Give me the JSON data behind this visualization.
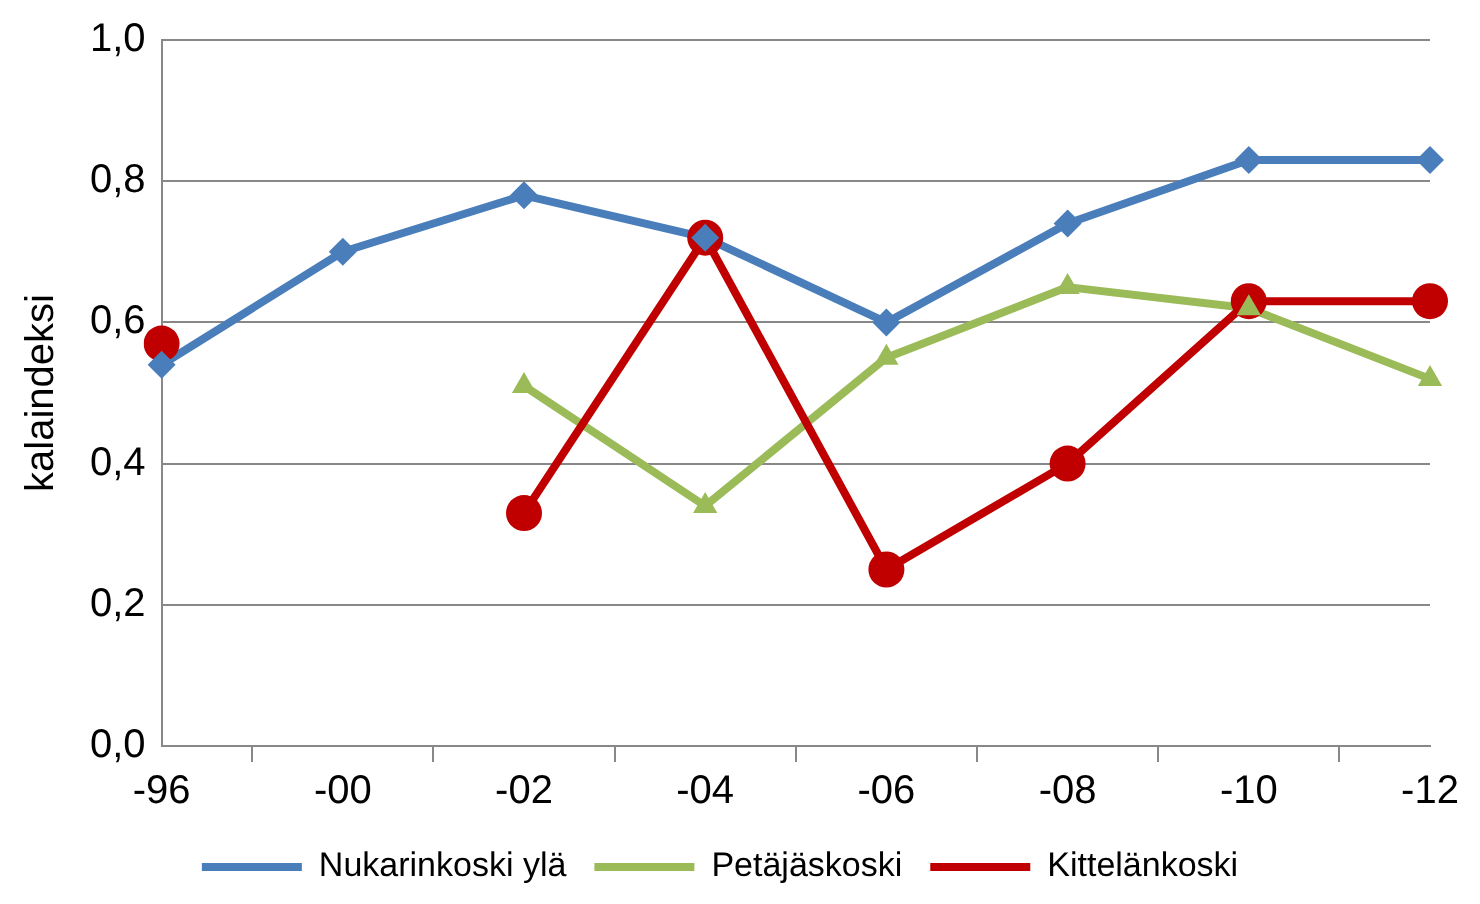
{
  "chart_data": {
    "type": "line",
    "ylabel": "kalaindeksi",
    "categories": [
      "-96",
      "-00",
      "-02",
      "-04",
      "-06",
      "-08",
      "-10",
      "-12"
    ],
    "series": [
      {
        "name": "Nukarinkoski ylä",
        "color": "#4a7ebb",
        "marker": "diamond",
        "values": [
          0.54,
          0.7,
          0.78,
          0.72,
          0.6,
          0.74,
          0.83,
          0.83
        ]
      },
      {
        "name": "Petäjäskoski",
        "color": "#9bbb59",
        "marker": "triangle",
        "values": [
          null,
          null,
          0.51,
          0.34,
          0.55,
          0.65,
          0.62,
          0.52
        ]
      },
      {
        "name": "Kittelänkoski",
        "color": "#c00000",
        "marker": "circle",
        "values": [
          0.57,
          null,
          0.33,
          0.72,
          0.25,
          0.4,
          0.63,
          0.63
        ]
      }
    ],
    "ylim": [
      0,
      1
    ],
    "yticks": [
      {
        "value": 0,
        "label": "0,0"
      },
      {
        "value": 0.2,
        "label": "0,2"
      },
      {
        "value": 0.4,
        "label": "0,4"
      },
      {
        "value": 0.6,
        "label": "0,6"
      },
      {
        "value": 0.8,
        "label": "0,8"
      },
      {
        "value": 1,
        "label": "1,0"
      }
    ],
    "grid": "y",
    "legend": "bottom",
    "line_style": "solid"
  }
}
